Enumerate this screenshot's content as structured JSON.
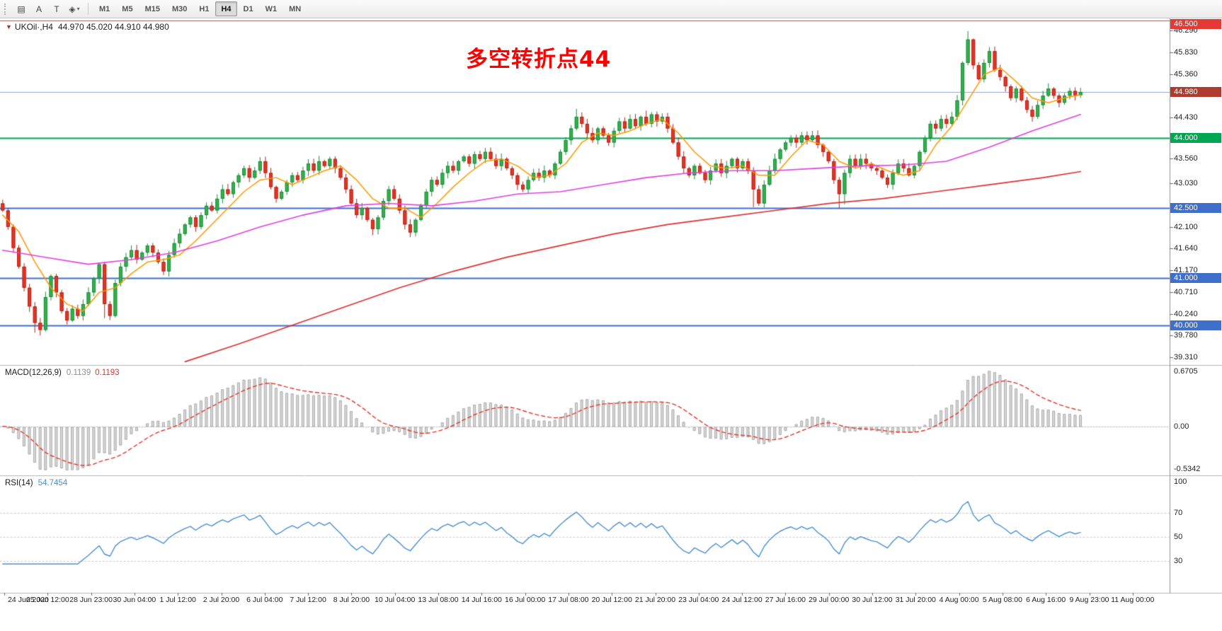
{
  "toolbar": {
    "tools": [
      {
        "id": "objects-list-tool",
        "glyph": "▤"
      },
      {
        "id": "text-tool",
        "glyph": "A"
      },
      {
        "id": "text-label-tool",
        "glyph": "T"
      },
      {
        "id": "shapes-tool",
        "glyph": "◈"
      }
    ],
    "shapes_caret": "▾",
    "timeframes": [
      {
        "label": "M1",
        "active": false
      },
      {
        "label": "M5",
        "active": false
      },
      {
        "label": "M15",
        "active": false
      },
      {
        "label": "M30",
        "active": false
      },
      {
        "label": "H1",
        "active": false
      },
      {
        "label": "H4",
        "active": true
      },
      {
        "label": "D1",
        "active": false
      },
      {
        "label": "W1",
        "active": false
      },
      {
        "label": "MN",
        "active": false
      }
    ]
  },
  "chart": {
    "symbol_title": "UKOil·,H4",
    "ohlc_text": "44.970 45.020 44.910 44.980",
    "one_click_glyph": "▼",
    "annotation": {
      "text": "多空转折点44",
      "color": "#ff0000"
    },
    "price_axis": {
      "max": 46.55,
      "min": 39.18,
      "ticks": [
        46.29,
        45.83,
        45.36,
        44.43,
        43.56,
        43.03,
        42.1,
        41.64,
        41.17,
        40.71,
        40.24,
        39.78,
        39.31
      ]
    },
    "levels": [
      {
        "value": 46.5,
        "label": "46.500",
        "color": "#e53935",
        "width": 1
      },
      {
        "value": 44.98,
        "label": null,
        "color": "#8fa8c8",
        "width": 1
      },
      {
        "value": 44.0,
        "label": "44.000",
        "color": "#00a651",
        "width": 2
      },
      {
        "value": 42.5,
        "label": "42.500",
        "color": "#3f6ecb",
        "width": 2
      },
      {
        "value": 41.0,
        "label": "41.000",
        "color": "#3f6ecb",
        "width": 2
      },
      {
        "value": 40.0,
        "label": "40.000",
        "color": "#3f6ecb",
        "width": 2
      }
    ],
    "current_price": {
      "value": 44.98,
      "label": "44.980",
      "box_color": "#b03a2e"
    },
    "time_labels": [
      "24 Jun 2020",
      "25 Jun 12:00",
      "28 Jun 23:00",
      "30 Jun 04:00",
      "1 Jul 12:00",
      "2 Jul 20:00",
      "6 Jul 04:00",
      "7 Jul 12:00",
      "8 Jul 20:00",
      "10 Jul 04:00",
      "13 Jul 08:00",
      "14 Jul 16:00",
      "16 Jul 00:00",
      "17 Jul 08:00",
      "20 Jul 12:00",
      "21 Jul 20:00",
      "23 Jul 04:00",
      "24 Jul 12:00",
      "27 Jul 16:00",
      "29 Jul 00:00",
      "30 Jul 12:00",
      "31 Jul 20:00",
      "4 Aug 00:00",
      "5 Aug 08:00",
      "6 Aug 16:00",
      "9 Aug 23:00",
      "11 Aug 00:00"
    ]
  },
  "indicators": {
    "macd": {
      "title": "MACD(12,26,9)",
      "main_value": "0.1139",
      "signal_value": "0.1193"
    },
    "rsi": {
      "title": "RSI(14)",
      "value": "54.7454"
    }
  },
  "chart_data": {
    "type": "candlestick",
    "symbol": "UKOil",
    "timeframe": "H4",
    "ohlc_current": {
      "open": 44.97,
      "high": 45.02,
      "low": 44.91,
      "close": 44.98
    },
    "up_color": "#30b54a",
    "down_color": "#ea3323",
    "open_first": 42.6,
    "closes": [
      42.45,
      42.1,
      41.65,
      41.25,
      40.8,
      40.4,
      40.05,
      39.9,
      40.6,
      41.05,
      40.7,
      40.3,
      40.1,
      40.35,
      40.2,
      40.45,
      40.7,
      41.0,
      41.3,
      40.45,
      40.2,
      40.9,
      41.25,
      41.45,
      41.6,
      41.4,
      41.55,
      41.7,
      41.55,
      41.35,
      41.15,
      41.5,
      41.75,
      41.95,
      42.15,
      42.3,
      42.1,
      42.35,
      42.55,
      42.45,
      42.7,
      42.9,
      42.8,
      43.05,
      43.2,
      43.35,
      43.15,
      43.3,
      43.5,
      43.25,
      42.95,
      42.7,
      42.85,
      43.05,
      43.2,
      43.1,
      43.3,
      43.45,
      43.3,
      43.5,
      43.4,
      43.55,
      43.35,
      43.15,
      42.9,
      42.6,
      42.35,
      42.5,
      42.25,
      42.05,
      42.3,
      42.65,
      42.9,
      42.7,
      42.45,
      42.15,
      41.98,
      42.25,
      42.55,
      42.85,
      43.1,
      43.0,
      43.25,
      43.4,
      43.3,
      43.5,
      43.6,
      43.45,
      43.65,
      43.55,
      43.7,
      43.55,
      43.4,
      43.55,
      43.35,
      43.2,
      43.0,
      42.9,
      43.1,
      43.25,
      43.15,
      43.3,
      43.2,
      43.45,
      43.7,
      43.95,
      44.2,
      44.45,
      44.3,
      44.1,
      43.95,
      44.2,
      44.05,
      43.9,
      44.15,
      44.35,
      44.2,
      44.4,
      44.25,
      44.45,
      44.3,
      44.5,
      44.35,
      44.45,
      44.2,
      43.9,
      43.6,
      43.35,
      43.2,
      43.4,
      43.25,
      43.1,
      43.3,
      43.45,
      43.25,
      43.4,
      43.55,
      43.35,
      43.5,
      43.3,
      42.9,
      42.6,
      43.0,
      43.3,
      43.55,
      43.75,
      43.9,
      44.0,
      43.9,
      44.05,
      43.95,
      44.05,
      43.85,
      43.7,
      43.5,
      43.1,
      42.8,
      43.25,
      43.55,
      43.4,
      43.55,
      43.45,
      43.35,
      43.3,
      43.15,
      43.0,
      43.25,
      43.45,
      43.35,
      43.2,
      43.4,
      43.7,
      44.0,
      44.3,
      44.2,
      44.4,
      44.3,
      44.45,
      44.8,
      45.6,
      46.1,
      45.55,
      45.25,
      45.6,
      45.85,
      45.45,
      45.3,
      45.1,
      44.85,
      45.05,
      44.8,
      44.6,
      44.45,
      44.7,
      44.9,
      45.05,
      44.9,
      44.75,
      44.9,
      45.0,
      44.91,
      44.98
    ],
    "wick_overrides": {
      "0": {
        "high": 42.68
      },
      "6": {
        "low": 39.84
      },
      "7": {
        "low": 39.78
      },
      "19": {
        "low": 40.15
      },
      "69": {
        "low": 41.92
      },
      "76": {
        "low": 41.88
      },
      "107": {
        "high": 44.62
      },
      "120": {
        "high": 44.58
      },
      "140": {
        "low": 42.52
      },
      "156": {
        "low": 42.5
      },
      "157": {
        "low": 42.58
      },
      "180": {
        "high": 46.28
      },
      "181": {
        "high": 46.12
      }
    },
    "moving_averages": [
      {
        "name": "ma-fast",
        "color": "#ff9800",
        "width": 1.5,
        "points": [
          [
            0,
            42.35
          ],
          [
            3,
            42.0
          ],
          [
            6,
            41.35
          ],
          [
            9,
            40.8
          ],
          [
            12,
            40.45
          ],
          [
            15,
            40.3
          ],
          [
            18,
            40.7
          ],
          [
            21,
            40.8
          ],
          [
            24,
            41.1
          ],
          [
            27,
            41.35
          ],
          [
            30,
            41.4
          ],
          [
            33,
            41.5
          ],
          [
            36,
            41.8
          ],
          [
            39,
            42.15
          ],
          [
            42,
            42.5
          ],
          [
            45,
            42.85
          ],
          [
            48,
            43.1
          ],
          [
            51,
            43.15
          ],
          [
            54,
            43.0
          ],
          [
            57,
            43.15
          ],
          [
            60,
            43.3
          ],
          [
            63,
            43.4
          ],
          [
            66,
            43.1
          ],
          [
            69,
            42.7
          ],
          [
            72,
            42.5
          ],
          [
            75,
            42.5
          ],
          [
            78,
            42.3
          ],
          [
            81,
            42.6
          ],
          [
            84,
            42.95
          ],
          [
            87,
            43.25
          ],
          [
            90,
            43.5
          ],
          [
            93,
            43.55
          ],
          [
            96,
            43.4
          ],
          [
            99,
            43.15
          ],
          [
            102,
            43.2
          ],
          [
            105,
            43.45
          ],
          [
            108,
            43.9
          ],
          [
            111,
            44.1
          ],
          [
            114,
            44.05
          ],
          [
            117,
            44.15
          ],
          [
            120,
            44.3
          ],
          [
            123,
            44.4
          ],
          [
            126,
            44.1
          ],
          [
            129,
            43.7
          ],
          [
            132,
            43.4
          ],
          [
            135,
            43.35
          ],
          [
            138,
            43.4
          ],
          [
            141,
            43.2
          ],
          [
            144,
            43.2
          ],
          [
            147,
            43.6
          ],
          [
            150,
            43.95
          ],
          [
            153,
            43.85
          ],
          [
            156,
            43.5
          ],
          [
            159,
            43.35
          ],
          [
            162,
            43.45
          ],
          [
            165,
            43.3
          ],
          [
            168,
            43.2
          ],
          [
            171,
            43.3
          ],
          [
            174,
            43.85
          ],
          [
            177,
            44.25
          ],
          [
            180,
            44.8
          ],
          [
            183,
            45.35
          ],
          [
            186,
            45.5
          ],
          [
            189,
            45.2
          ],
          [
            192,
            44.85
          ],
          [
            195,
            44.75
          ],
          [
            198,
            44.85
          ],
          [
            201,
            44.92
          ]
        ]
      },
      {
        "name": "ma-medium",
        "color": "#e040e0",
        "width": 1.6,
        "points": [
          [
            0,
            41.6
          ],
          [
            8,
            41.45
          ],
          [
            16,
            41.3
          ],
          [
            24,
            41.4
          ],
          [
            32,
            41.55
          ],
          [
            40,
            41.8
          ],
          [
            48,
            42.1
          ],
          [
            56,
            42.35
          ],
          [
            64,
            42.55
          ],
          [
            72,
            42.6
          ],
          [
            80,
            42.55
          ],
          [
            88,
            42.65
          ],
          [
            96,
            42.8
          ],
          [
            104,
            42.85
          ],
          [
            112,
            43.0
          ],
          [
            120,
            43.15
          ],
          [
            128,
            43.25
          ],
          [
            136,
            43.3
          ],
          [
            144,
            43.3
          ],
          [
            152,
            43.35
          ],
          [
            160,
            43.4
          ],
          [
            168,
            43.42
          ],
          [
            176,
            43.5
          ],
          [
            184,
            43.8
          ],
          [
            192,
            44.15
          ],
          [
            201,
            44.5
          ]
        ]
      },
      {
        "name": "ma-slow",
        "color": "#e03030",
        "width": 1.7,
        "points": [
          [
            34,
            39.22
          ],
          [
            44,
            39.6
          ],
          [
            54,
            40.0
          ],
          [
            64,
            40.4
          ],
          [
            74,
            40.8
          ],
          [
            84,
            41.15
          ],
          [
            94,
            41.45
          ],
          [
            104,
            41.7
          ],
          [
            114,
            41.95
          ],
          [
            124,
            42.15
          ],
          [
            134,
            42.3
          ],
          [
            144,
            42.45
          ],
          [
            154,
            42.6
          ],
          [
            164,
            42.7
          ],
          [
            174,
            42.85
          ],
          [
            184,
            43.0
          ],
          [
            194,
            43.15
          ],
          [
            201,
            43.28
          ]
        ]
      }
    ],
    "macd": {
      "fast": 12,
      "slow": 26,
      "signal": 9,
      "range": [
        -0.5342,
        0.6705
      ],
      "scale_labels": [
        "0.6705",
        "0.00",
        "-0.5342"
      ]
    },
    "rsi": {
      "period": 14,
      "range": [
        5,
        100
      ],
      "levels": [
        70,
        50,
        30
      ],
      "scale_labels": [
        "100",
        "70",
        "50",
        "30"
      ]
    }
  }
}
